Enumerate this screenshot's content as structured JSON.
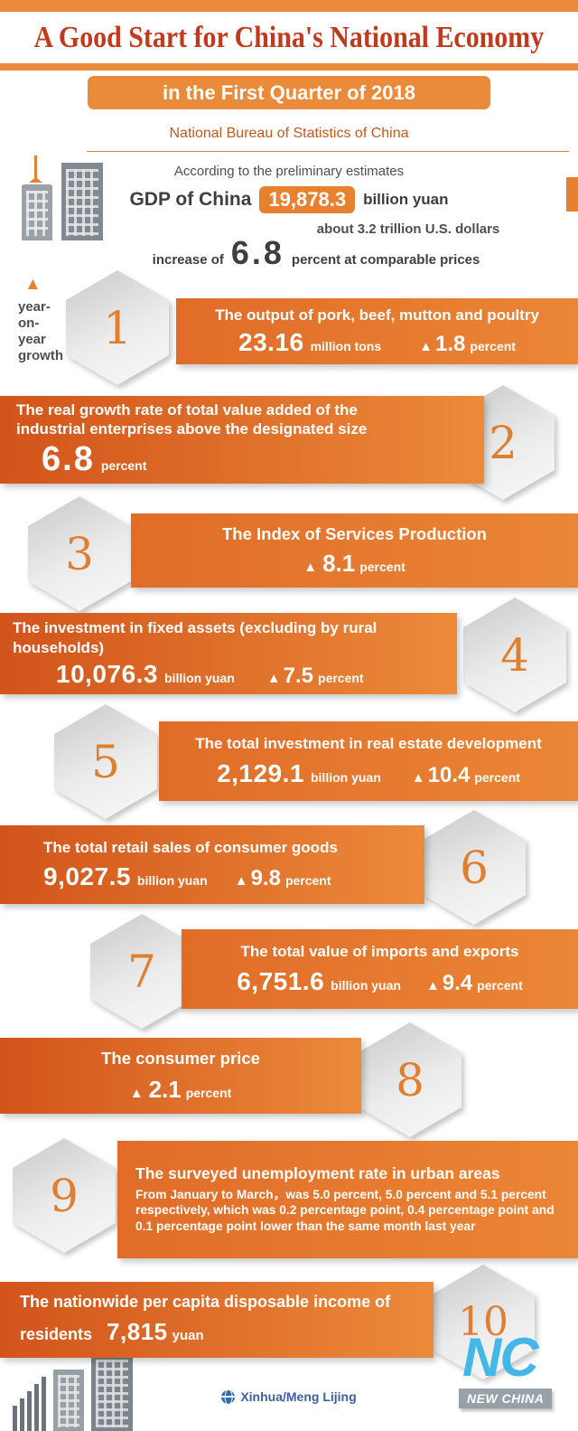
{
  "header": {
    "title": "A Good Start for China's National Economy",
    "subtitle": "in the First Quarter of 2018"
  },
  "intro": {
    "source": "National Bureau of Statistics of China",
    "according": "According to the preliminary estimates",
    "gdp_label": "GDP of China",
    "gdp_value": "19,878.3",
    "gdp_unit": "billion yuan",
    "usd_note": "about 3.2 trillion U.S. dollars",
    "increase_prefix": "increase of",
    "increase_value": "6.8",
    "increase_suffix": "percent at comparable prices"
  },
  "legend": {
    "marker": "▲",
    "label": "year-\non-\nyear\ngrowth"
  },
  "items": [
    {
      "num": "1",
      "title": "The output of pork, beef, mutton and poultry",
      "value": "23.16",
      "value_unit": "million tons",
      "delta_marker": "▲",
      "delta": "1.8",
      "delta_unit": "percent"
    },
    {
      "num": "2",
      "title": "The real growth rate of total value added of the industrial enterprises above the designated size",
      "value": "6.8",
      "value_unit": "percent"
    },
    {
      "num": "3",
      "title": "The Index of Services Production",
      "delta_marker": "▲",
      "delta": "8.1",
      "delta_unit": "percent"
    },
    {
      "num": "4",
      "title": "The investment in fixed assets (excluding by rural households)",
      "value": "10,076.3",
      "value_unit": "billion yuan",
      "delta_marker": "▲",
      "delta": "7.5",
      "delta_unit": "percent"
    },
    {
      "num": "5",
      "title": "The total investment in real estate development",
      "value": "2,129.1",
      "value_unit": "billion yuan",
      "delta_marker": "▲",
      "delta": "10.4",
      "delta_unit": "percent"
    },
    {
      "num": "6",
      "title": "The total retail sales of consumer goods",
      "value": "9,027.5",
      "value_unit": "billion yuan",
      "delta_marker": "▲",
      "delta": "9.8",
      "delta_unit": "percent"
    },
    {
      "num": "7",
      "title": "The total value of imports and exports",
      "value": "6,751.6",
      "value_unit": "billion yuan",
      "delta_marker": "▲",
      "delta": "9.4",
      "delta_unit": "percent"
    },
    {
      "num": "8",
      "title": "The consumer price",
      "delta_marker": "▲",
      "delta": "2.1",
      "delta_unit": "percent"
    },
    {
      "num": "9",
      "title": "The surveyed unemployment rate in urban areas",
      "body": "From January to March，was 5.0 percent, 5.0 percent and 5.1 percent respectively, which was 0.2 percentage point, 0.4 percentage point and 0.1 percentage point lower than the same month last year"
    },
    {
      "num": "10",
      "title": "The nationwide per capita disposable income of residents",
      "value": "7,815",
      "value_unit": "yuan"
    }
  ],
  "footer": {
    "credit": "Xinhua/Meng Lijing",
    "logo_nc": "NC",
    "logo_text": "NEW CHINA"
  },
  "chart_data": {
    "type": "table",
    "title": "A Good Start for China's National Economy in the First Quarter of 2018",
    "source": "National Bureau of Statistics of China",
    "columns": [
      "indicator",
      "value",
      "unit",
      "yoy_change"
    ],
    "rows": [
      [
        "GDP of China (preliminary estimates)",
        "19,878.3",
        "billion yuan (about 3.2 trillion U.S. dollars)",
        "+6.8 percent at comparable prices"
      ],
      [
        "Output of pork, beef, mutton and poultry",
        "23.16",
        "million tons",
        "+1.8 percent"
      ],
      [
        "Real growth rate of total value added of industrial enterprises above the designated size",
        "6.8",
        "percent",
        ""
      ],
      [
        "Index of Services Production",
        "",
        "",
        "+8.1 percent"
      ],
      [
        "Investment in fixed assets (excluding by rural households)",
        "10,076.3",
        "billion yuan",
        "+7.5 percent"
      ],
      [
        "Total investment in real estate development",
        "2,129.1",
        "billion yuan",
        "+10.4 percent"
      ],
      [
        "Total retail sales of consumer goods",
        "9,027.5",
        "billion yuan",
        "+9.8 percent"
      ],
      [
        "Total value of imports and exports",
        "6,751.6",
        "billion yuan",
        "+9.4 percent"
      ],
      [
        "Consumer price",
        "",
        "",
        "+2.1 percent"
      ],
      [
        "Surveyed unemployment rate in urban areas, Jan/Feb/Mar",
        "5.0 / 5.0 / 5.1",
        "percent",
        "-0.2 / -0.4 / -0.1 percentage point vs same month last year"
      ],
      [
        "Nationwide per capita disposable income of residents",
        "7,815",
        "yuan",
        ""
      ]
    ]
  }
}
